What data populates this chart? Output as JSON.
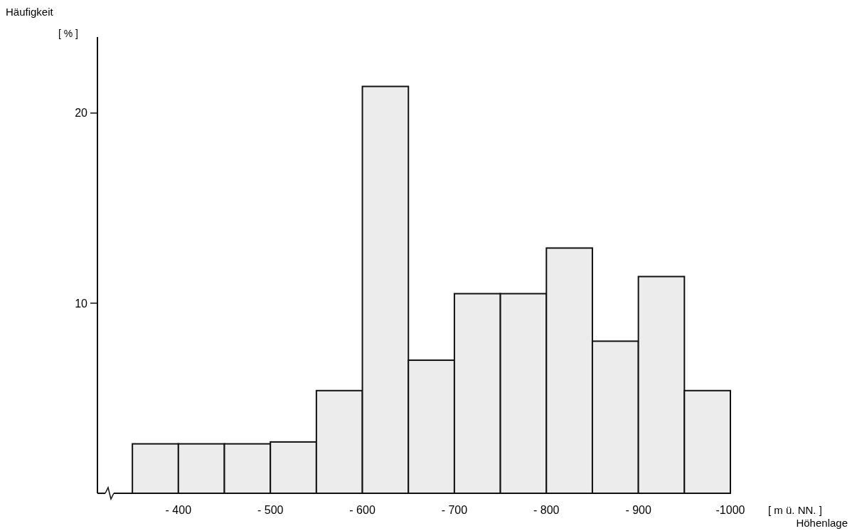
{
  "chart_data": {
    "type": "histogram",
    "xlabel": "Höhenlage",
    "ylabel": "Häufigkeit",
    "annotations": [
      "[ % ]",
      "[ m ü. NN. ]"
    ],
    "bins": [
      -350,
      -400,
      -450,
      -500,
      -550,
      -600,
      -650,
      -700,
      -750,
      -800,
      -850,
      -900,
      -950,
      -1000
    ],
    "values": [
      2.6,
      2.6,
      2.6,
      2.7,
      5.4,
      21.4,
      7.0,
      10.5,
      10.5,
      12.9,
      8.0,
      11.4,
      5.4
    ],
    "color": "#ececec",
    "xlim": [
      -312,
      -1000
    ],
    "xticks": [
      {
        "value": -400,
        "label": "- 400"
      },
      {
        "value": -500,
        "label": "- 500"
      },
      {
        "value": -600,
        "label": "- 600"
      },
      {
        "value": -700,
        "label": "- 700"
      },
      {
        "value": -800,
        "label": "- 800"
      },
      {
        "value": -900,
        "label": "- 900"
      },
      {
        "value": -1000,
        "label": "-1000"
      }
    ],
    "ylim": [
      0,
      24
    ],
    "yticks": [
      10,
      20
    ],
    "grid": false
  }
}
